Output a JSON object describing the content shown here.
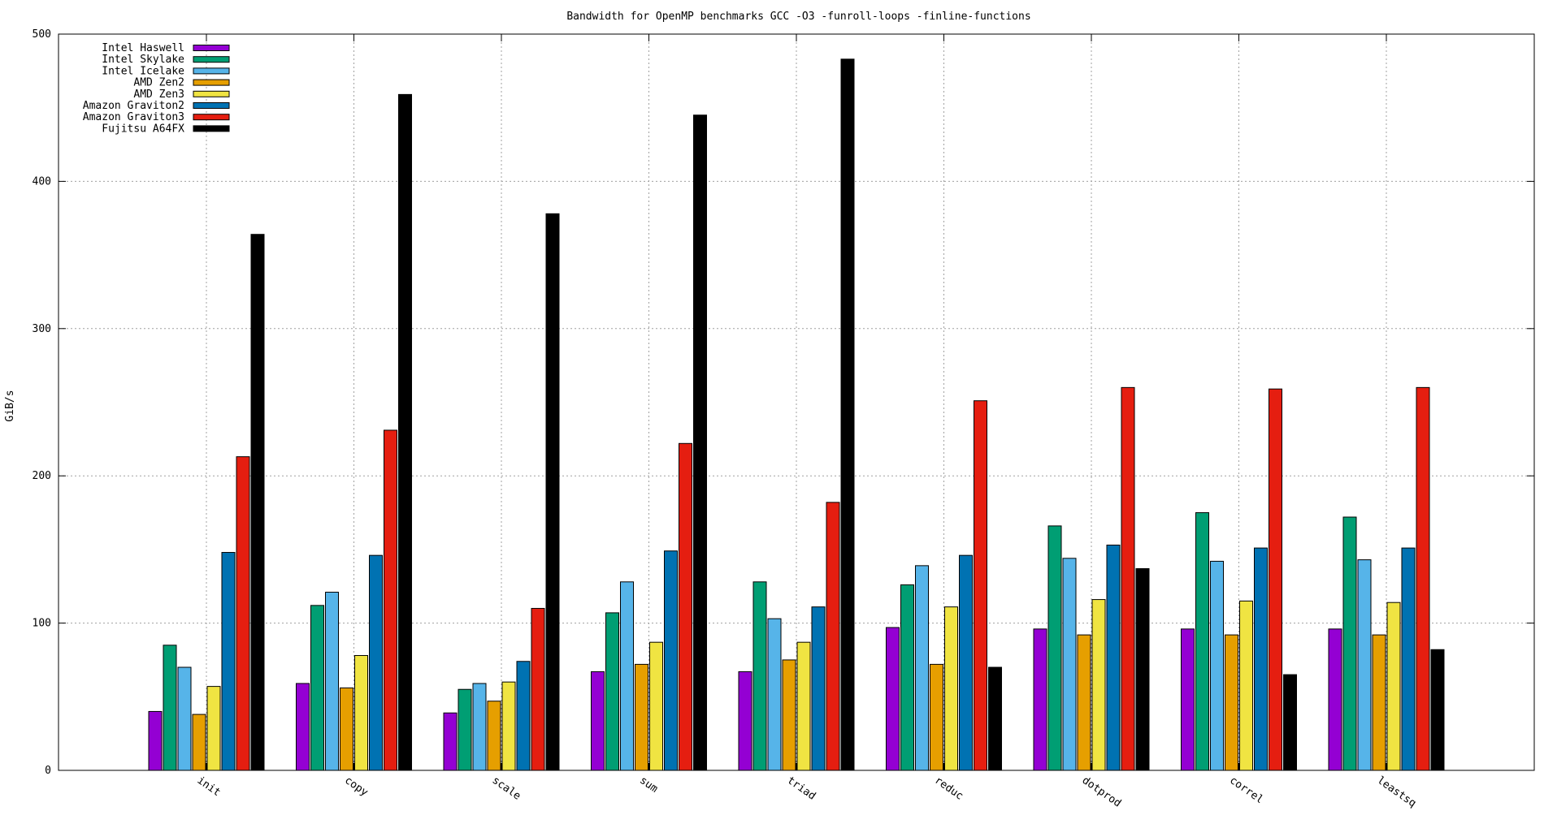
{
  "chart_data": {
    "type": "bar",
    "title": "Bandwidth for OpenMP benchmarks GCC -O3 -funroll-loops -finline-functions",
    "xlabel": "",
    "ylabel": "GiB/s",
    "ylim": [
      0,
      500
    ],
    "yticks": [
      0,
      100,
      200,
      300,
      400,
      500
    ],
    "grid": true,
    "legend_position": "top-left",
    "categories": [
      "init",
      "copy",
      "scale",
      "sum",
      "triad",
      "reduc",
      "dotprod",
      "correl",
      "leastsq"
    ],
    "series": [
      {
        "name": "Intel Haswell",
        "color": "#9400d3",
        "values": [
          40,
          59,
          39,
          67,
          67,
          97,
          96,
          96,
          96
        ]
      },
      {
        "name": "Intel Skylake",
        "color": "#009e73",
        "values": [
          85,
          112,
          55,
          107,
          128,
          126,
          166,
          175,
          172
        ]
      },
      {
        "name": "Intel Icelake",
        "color": "#56b4e9",
        "values": [
          70,
          121,
          59,
          128,
          103,
          139,
          144,
          142,
          143
        ]
      },
      {
        "name": "AMD Zen2",
        "color": "#e69f00",
        "values": [
          38,
          56,
          47,
          72,
          75,
          72,
          92,
          92,
          92
        ]
      },
      {
        "name": "AMD Zen3",
        "color": "#f0e442",
        "values": [
          57,
          78,
          60,
          87,
          87,
          111,
          116,
          115,
          114
        ]
      },
      {
        "name": "Amazon Graviton2",
        "color": "#0072b2",
        "values": [
          148,
          146,
          74,
          149,
          111,
          146,
          153,
          151,
          151
        ]
      },
      {
        "name": "Amazon Graviton3",
        "color": "#e51e10",
        "values": [
          213,
          231,
          110,
          222,
          182,
          251,
          260,
          259,
          260
        ]
      },
      {
        "name": "Fujitsu A64FX",
        "color": "#000000",
        "values": [
          364,
          459,
          378,
          445,
          483,
          70,
          137,
          65,
          82
        ]
      }
    ]
  }
}
